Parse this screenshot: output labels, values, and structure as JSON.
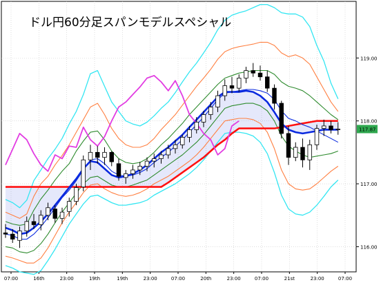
{
  "title": "ドル円60分足スパンモデルスペシャル",
  "current_price_label": "117.87",
  "colors": {
    "background": "#ffffff",
    "bollinger_outer": "#33e6f2",
    "bollinger_mid": "#ff7f40",
    "bollinger_inner": "#2e8b2e",
    "moving_average": "#0a2adf",
    "span_line": "#ff1010",
    "chikou": "#e23ce2",
    "candle": "#000000",
    "price_box": "#2fa84f"
  },
  "chart_data": {
    "type": "candlestick",
    "title": "ドル円60分足スパンモデルスペシャル",
    "ylim": [
      115.6,
      119.9
    ],
    "y_ticks": [
      "119.00",
      "118.00",
      "117.00",
      "116.00"
    ],
    "y_tick_values": [
      119.0,
      118.0,
      117.0,
      116.0
    ],
    "x_tick_labels": [
      "07:00",
      "16th",
      "23:00",
      "19th",
      "19th",
      "23:00",
      "07:00",
      "20th",
      "23:00",
      "07:00",
      "21st",
      "23:00",
      "07:00"
    ],
    "current_price": 117.87,
    "candles": [
      [
        116.22,
        116.36,
        116.14,
        116.2
      ],
      [
        116.2,
        116.28,
        116.06,
        116.12
      ],
      [
        116.1,
        116.32,
        115.98,
        116.25
      ],
      [
        116.25,
        116.48,
        116.16,
        116.4
      ],
      [
        116.4,
        116.52,
        116.28,
        116.35
      ],
      [
        116.35,
        116.58,
        116.26,
        116.5
      ],
      [
        116.5,
        116.7,
        116.42,
        116.62
      ],
      [
        116.6,
        116.66,
        116.38,
        116.45
      ],
      [
        116.45,
        116.62,
        116.36,
        116.55
      ],
      [
        116.56,
        116.78,
        116.48,
        116.72
      ],
      [
        116.72,
        117.0,
        116.66,
        116.94
      ],
      [
        116.95,
        117.45,
        116.88,
        117.38
      ],
      [
        117.38,
        117.62,
        117.22,
        117.5
      ],
      [
        117.5,
        117.6,
        117.32,
        117.42
      ],
      [
        117.42,
        117.58,
        117.3,
        117.5
      ],
      [
        117.5,
        117.52,
        117.28,
        117.35
      ],
      [
        117.32,
        117.4,
        117.05,
        117.12
      ],
      [
        117.1,
        117.22,
        117.0,
        117.16
      ],
      [
        117.16,
        117.3,
        117.08,
        117.22
      ],
      [
        117.22,
        117.35,
        117.14,
        117.28
      ],
      [
        117.28,
        117.42,
        117.2,
        117.36
      ],
      [
        117.36,
        117.48,
        117.26,
        117.4
      ],
      [
        117.4,
        117.52,
        117.32,
        117.46
      ],
      [
        117.46,
        117.62,
        117.4,
        117.56
      ],
      [
        117.56,
        117.7,
        117.48,
        117.62
      ],
      [
        117.62,
        117.78,
        117.56,
        117.74
      ],
      [
        117.74,
        117.92,
        117.66,
        117.86
      ],
      [
        117.86,
        118.06,
        117.8,
        117.98
      ],
      [
        117.98,
        118.16,
        117.9,
        118.1
      ],
      [
        118.1,
        118.3,
        118.02,
        118.22
      ],
      [
        118.22,
        118.48,
        118.14,
        118.4
      ],
      [
        118.4,
        118.66,
        118.32,
        118.56
      ],
      [
        118.56,
        118.7,
        118.44,
        118.52
      ],
      [
        118.52,
        118.74,
        118.46,
        118.68
      ],
      [
        118.68,
        118.86,
        118.6,
        118.8
      ],
      [
        118.8,
        118.92,
        118.7,
        118.76
      ],
      [
        118.76,
        118.88,
        118.64,
        118.7
      ],
      [
        118.7,
        118.8,
        118.46,
        118.52
      ],
      [
        118.52,
        118.58,
        118.18,
        118.28
      ],
      [
        118.28,
        118.32,
        117.72,
        117.8
      ],
      [
        117.8,
        117.92,
        117.3,
        117.42
      ],
      [
        117.42,
        117.66,
        117.36,
        117.58
      ],
      [
        117.58,
        117.72,
        117.26,
        117.38
      ],
      [
        117.38,
        117.7,
        117.22,
        117.62
      ],
      [
        117.62,
        117.94,
        117.54,
        117.88
      ],
      [
        117.88,
        118.02,
        117.76,
        117.92
      ],
      [
        117.92,
        118.0,
        117.8,
        117.86
      ],
      [
        117.86,
        117.98,
        117.78,
        117.87
      ]
    ],
    "series": [
      {
        "name": "",
        "role": "upper_bollinger_3",
        "values": [
          116.75,
          116.7,
          116.62,
          116.74,
          117.05,
          117.22,
          117.4,
          117.55,
          117.72,
          117.95,
          118.15,
          118.42,
          118.75,
          118.8,
          118.55,
          118.3,
          118.15,
          118.0,
          117.95,
          117.92,
          117.98,
          118.08,
          118.2,
          118.3,
          118.45,
          118.62,
          118.78,
          118.92,
          119.08,
          119.25,
          119.45,
          119.6,
          119.68,
          119.72,
          119.75,
          119.8,
          119.85,
          119.85,
          119.8,
          119.72,
          119.7,
          119.7,
          119.65,
          119.5,
          119.2,
          118.95,
          118.6,
          118.35
        ]
      },
      {
        "name": "",
        "role": "upper_bollinger_2",
        "values": [
          116.55,
          116.5,
          116.45,
          116.52,
          116.8,
          117.0,
          117.12,
          117.3,
          117.45,
          117.62,
          117.82,
          118.02,
          118.22,
          118.28,
          118.1,
          117.88,
          117.72,
          117.62,
          117.58,
          117.58,
          117.62,
          117.72,
          117.86,
          117.98,
          118.1,
          118.25,
          118.4,
          118.55,
          118.68,
          118.82,
          118.98,
          119.1,
          119.15,
          119.18,
          119.2,
          119.22,
          119.25,
          119.25,
          119.2,
          119.08,
          119.02,
          119.05,
          119.0,
          118.9,
          118.7,
          118.5,
          118.3,
          118.15
        ]
      },
      {
        "name": "",
        "role": "upper_bollinger_1",
        "values": [
          116.4,
          116.36,
          116.34,
          116.36,
          116.58,
          116.76,
          116.9,
          117.06,
          117.2,
          117.32,
          117.52,
          117.68,
          117.82,
          117.84,
          117.7,
          117.52,
          117.4,
          117.34,
          117.32,
          117.34,
          117.4,
          117.5,
          117.62,
          117.72,
          117.84,
          117.96,
          118.1,
          118.22,
          118.34,
          118.46,
          118.58,
          118.68,
          118.72,
          118.76,
          118.78,
          118.8,
          118.8,
          118.8,
          118.74,
          118.62,
          118.55,
          118.52,
          118.48,
          118.4,
          118.3,
          118.2,
          118.1,
          118.02
        ]
      },
      {
        "name": "",
        "role": "moving_average",
        "values": [
          116.2,
          116.18,
          116.12,
          116.12,
          116.2,
          116.32,
          116.46,
          116.62,
          116.78,
          116.9,
          117.05,
          117.22,
          117.38,
          117.4,
          117.32,
          117.2,
          117.14,
          117.12,
          117.14,
          117.18,
          117.24,
          117.34,
          117.42,
          117.5,
          117.6,
          117.7,
          117.82,
          117.94,
          118.06,
          118.2,
          118.34,
          118.44,
          118.46,
          118.48,
          118.5,
          118.5,
          118.48,
          118.44,
          118.34,
          118.16,
          118.04,
          118.0,
          117.94,
          117.9,
          117.84,
          117.78,
          117.72,
          117.66
        ]
      },
      {
        "name": "",
        "role": "lower_bollinger_1",
        "values": [
          116.0,
          115.98,
          115.92,
          115.9,
          115.94,
          116.05,
          116.2,
          116.38,
          116.55,
          116.7,
          116.85,
          117.0,
          117.1,
          117.12,
          117.05,
          116.98,
          116.95,
          116.95,
          116.98,
          117.02,
          117.06,
          117.14,
          117.22,
          117.3,
          117.38,
          117.46,
          117.56,
          117.66,
          117.78,
          117.92,
          118.06,
          118.2,
          118.24,
          118.26,
          118.28,
          118.28,
          118.24,
          118.16,
          118.0,
          117.76,
          117.6,
          117.52,
          117.46,
          117.42,
          117.44,
          117.46,
          117.48,
          117.52
        ]
      },
      {
        "name": "",
        "role": "lower_bollinger_2",
        "values": [
          115.85,
          115.82,
          115.78,
          115.74,
          115.74,
          115.82,
          115.98,
          116.18,
          116.38,
          116.55,
          116.7,
          116.86,
          116.98,
          117.0,
          116.92,
          116.86,
          116.82,
          116.8,
          116.82,
          116.86,
          116.92,
          117.0,
          117.06,
          117.12,
          117.2,
          117.28,
          117.36,
          117.46,
          117.58,
          117.72,
          117.86,
          118.0,
          118.02,
          118.04,
          118.04,
          118.02,
          117.96,
          117.82,
          117.56,
          117.22,
          117.0,
          116.92,
          116.9,
          116.92,
          117.0,
          117.1,
          117.2,
          117.28
        ]
      },
      {
        "name": "",
        "role": "lower_bollinger_3",
        "values": [
          115.7,
          115.66,
          115.6,
          115.58,
          115.56,
          115.62,
          115.78,
          115.96,
          116.16,
          116.36,
          116.52,
          116.68,
          116.8,
          116.82,
          116.76,
          116.7,
          116.66,
          116.66,
          116.68,
          116.7,
          116.74,
          116.82,
          116.88,
          116.94,
          117.0,
          117.08,
          117.16,
          117.26,
          117.38,
          117.52,
          117.66,
          117.8,
          117.82,
          117.82,
          117.8,
          117.76,
          117.66,
          117.48,
          117.18,
          116.82,
          116.6,
          116.52,
          116.5,
          116.55,
          116.66,
          116.8,
          116.95,
          117.06
        ]
      },
      {
        "name": "",
        "role": "span_fast",
        "values": [
          116.3,
          116.26,
          116.2,
          116.22,
          116.3,
          116.4,
          116.52,
          116.66,
          116.8,
          116.94,
          117.08,
          117.24,
          117.36,
          117.34,
          117.24,
          117.14,
          117.1,
          117.12,
          117.16,
          117.22,
          117.3,
          117.4,
          117.5,
          117.58,
          117.68,
          117.78,
          117.9,
          118.02,
          118.14,
          118.26,
          118.38,
          118.46,
          118.46,
          118.46,
          118.48,
          118.46,
          118.4,
          118.3,
          118.14,
          117.96,
          117.86,
          117.82,
          117.8,
          117.82,
          117.84,
          117.86,
          117.86,
          117.86
        ]
      },
      {
        "name": "",
        "role": "span_slow",
        "values": [
          116.95,
          116.95,
          116.95,
          116.95,
          116.95,
          116.95,
          116.95,
          116.95,
          116.95,
          116.95,
          116.95,
          116.95,
          116.95,
          116.95,
          116.95,
          116.95,
          116.95,
          116.95,
          116.95,
          116.95,
          116.95,
          116.95,
          116.95,
          117.02,
          117.1,
          117.18,
          117.26,
          117.34,
          117.42,
          117.52,
          117.62,
          117.7,
          117.8,
          117.88,
          117.88,
          117.88,
          117.88,
          117.88,
          117.88,
          117.9,
          117.92,
          117.94,
          117.96,
          117.98,
          118.0,
          118.0,
          118.0,
          118.0
        ]
      },
      {
        "name": "",
        "role": "chikou",
        "values": [
          117.3,
          117.55,
          117.8,
          117.7,
          117.48,
          117.3,
          117.2,
          117.46,
          117.4,
          117.6,
          117.58,
          117.9,
          117.7,
          117.6,
          117.75,
          118.0,
          118.22,
          118.3,
          118.42,
          118.54,
          118.68,
          118.72,
          118.62,
          118.48,
          118.64,
          118.4,
          118.1,
          117.96,
          117.8,
          117.7,
          117.46,
          117.56,
          117.92,
          118.0
        ]
      }
    ]
  }
}
